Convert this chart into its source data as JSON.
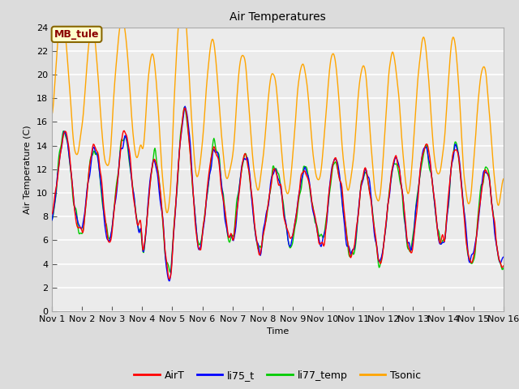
{
  "title": "Air Temperatures",
  "xlabel": "Time",
  "ylabel": "Air Temperature (C)",
  "annotation": "MB_tule",
  "annotation_color": "#8B0000",
  "annotation_bg": "#FFFFCC",
  "legend_labels": [
    "AirT",
    "li75_t",
    "li77_temp",
    "Tsonic"
  ],
  "legend_colors": [
    "#FF0000",
    "#0000FF",
    "#00CC00",
    "#FFA500"
  ],
  "ylim": [
    0,
    24
  ],
  "xlim": [
    0,
    360
  ],
  "xtick_labels": [
    "Nov 1",
    "Nov 2",
    "Nov 3",
    "Nov 4",
    "Nov 5",
    "Nov 6",
    "Nov 7",
    "Nov 8",
    "Nov 9",
    "Nov 10",
    "Nov 11",
    "Nov 12",
    "Nov 13",
    "Nov 14",
    "Nov 15",
    "Nov 16"
  ],
  "xtick_positions": [
    0,
    24,
    48,
    72,
    96,
    120,
    144,
    168,
    192,
    216,
    240,
    264,
    288,
    312,
    336,
    360
  ],
  "ytick_positions": [
    0,
    2,
    4,
    6,
    8,
    10,
    12,
    14,
    16,
    18,
    20,
    22,
    24
  ],
  "bg_color": "#DCDCDC",
  "plot_bg_color": "#EBEBEB",
  "grid_color": "#FFFFFF",
  "line_width": 1.0,
  "font_size": 8,
  "title_font_size": 10
}
